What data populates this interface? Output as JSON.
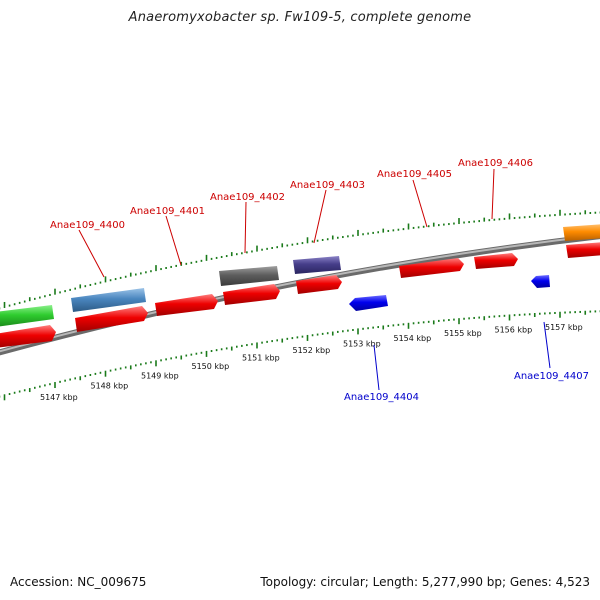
{
  "title": "Anaeromyxobacter sp. Fw109-5, complete genome",
  "footer": {
    "accession": "Accession: NC_009675",
    "topology": "Topology: circular; Length: 5,277,990 bp; Genes: 4,523"
  },
  "colors": {
    "backbone": "#808080",
    "tick": "#1a7a1a",
    "forward_label": "#cc0000",
    "reverse_label": "#0000cc"
  },
  "axis": {
    "unit": "kbp",
    "ticks": [
      {
        "kbp": 5147,
        "label": "5147 kbp"
      },
      {
        "kbp": 5148,
        "label": "5148 kbp"
      },
      {
        "kbp": 5149,
        "label": "5149 kbp"
      },
      {
        "kbp": 5150,
        "label": "5150 kbp"
      },
      {
        "kbp": 5151,
        "label": "5151 kbp"
      },
      {
        "kbp": 5152,
        "label": "5152 kbp"
      },
      {
        "kbp": 5153,
        "label": "5153 kbp"
      },
      {
        "kbp": 5154,
        "label": "5154 kbp"
      },
      {
        "kbp": 5155,
        "label": "5155 kbp"
      },
      {
        "kbp": 5156,
        "label": "5156 kbp"
      },
      {
        "kbp": 5157,
        "label": "5157 kbp"
      }
    ]
  },
  "gene_labels_forward": [
    "Anae109_4400",
    "Anae109_4401",
    "Anae109_4402",
    "Anae109_4403",
    "Anae109_4405",
    "Anae109_4406"
  ],
  "gene_labels_reverse": [
    "Anae109_4404",
    "Anae109_4407"
  ]
}
